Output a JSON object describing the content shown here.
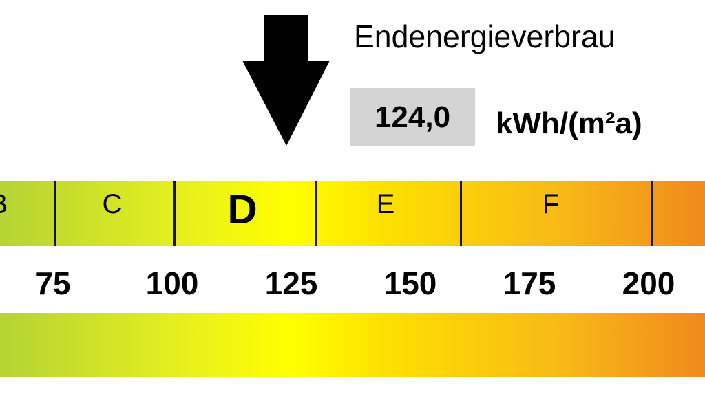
{
  "chart_data": {
    "type": "scale",
    "title": "Endenergieverbrau",
    "value": 124.0,
    "value_label": "124,0",
    "unit": "kWh/(m²a)",
    "x_ticks": [
      75,
      100,
      125,
      150,
      175,
      200
    ],
    "x_tick_labels": [
      "75",
      "100",
      "125",
      "150",
      "175",
      "200"
    ],
    "classes": [
      {
        "label": "B",
        "active": false
      },
      {
        "label": "C",
        "active": false
      },
      {
        "label": "D",
        "active": true
      },
      {
        "label": "E",
        "active": false
      },
      {
        "label": "F",
        "active": false
      }
    ],
    "colors": {
      "green": "#b5d334",
      "yellow": "#ffff00",
      "orange": "#f08a1c",
      "value_box": "#d4d4d4"
    }
  }
}
